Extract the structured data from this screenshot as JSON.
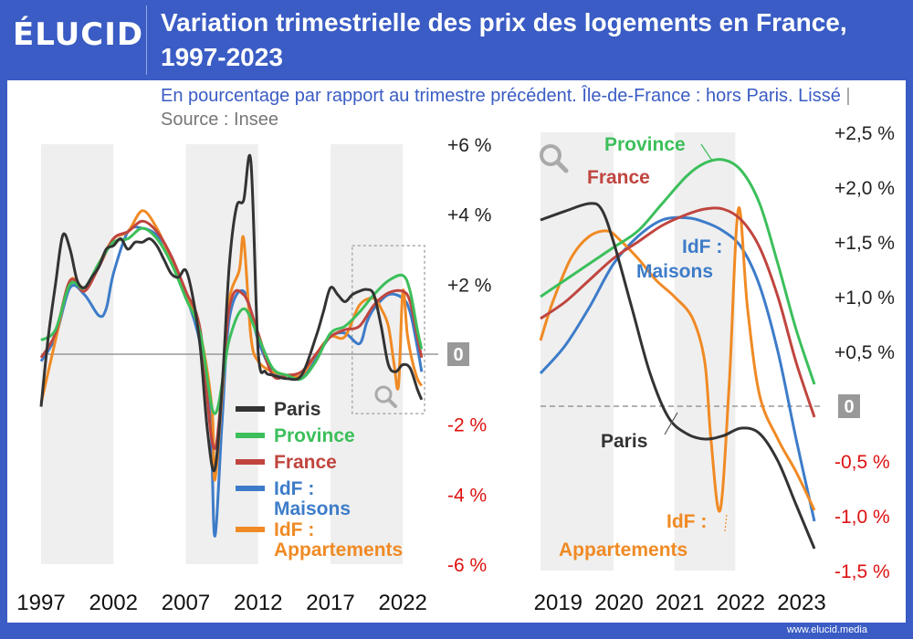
{
  "brand": "ÉLUCID",
  "title": "Variation trimestrielle des prix des logements en France, 1997-2023",
  "subtitle": "En pourcentage par rapport au trimestre précédent. Île-de-France : hors Paris. Lissé",
  "source": "Source : Insee",
  "footer": "www.elucid.media",
  "colors": {
    "Paris": "#333333",
    "Province": "#3cbf5b",
    "France": "#c0453f",
    "IdF : Maisons": "#3d7cc9",
    "IdF : Appartements": "#f08a24",
    "accent": "#3a5cc4",
    "negative": "#dd1111",
    "zero_badge": "#999999"
  },
  "chart_data": [
    {
      "type": "line",
      "x_ticks": [
        "1997",
        "2002",
        "2007",
        "2012",
        "2017",
        "2022"
      ],
      "y_tick_labels": [
        "+6 %",
        "+4 %",
        "+2 %",
        "0",
        "-2 %",
        "-4 %",
        "-6 %"
      ],
      "ylim": [
        -6,
        6
      ],
      "xlim": [
        1997,
        2023.5
      ],
      "legend": [
        "Paris",
        "Province",
        "France",
        "IdF : Maisons",
        "IdF : Appartements"
      ],
      "legend_placement": "bottom-right",
      "zoom_box": {
        "x_range": [
          2018.5,
          2023.5
        ],
        "y_range": [
          -1.7,
          3.1
        ]
      },
      "series": [
        {
          "name": "Paris",
          "x": [
            1997,
            1997.5,
            1998,
            1998.5,
            1999,
            1999.5,
            2000,
            2000.5,
            2001,
            2001.5,
            2002,
            2002.5,
            2003,
            2003.5,
            2004,
            2004.5,
            2005,
            2005.5,
            2006,
            2006.5,
            2007,
            2007.5,
            2008,
            2008.5,
            2009,
            2009.5,
            2010,
            2010.5,
            2011,
            2011.5,
            2012,
            2012.5,
            2013,
            2014,
            2015,
            2016,
            2016.5,
            2017,
            2017.5,
            2018,
            2018.5,
            2019,
            2019.5,
            2020,
            2020.5,
            2021,
            2021.5,
            2022,
            2022.5,
            2023,
            2023.3
          ],
          "y": [
            -1.5,
            0.5,
            2.0,
            3.4,
            3.0,
            2.1,
            1.9,
            2.2,
            2.5,
            3.0,
            3.1,
            3.3,
            3.0,
            3.2,
            3.2,
            3.3,
            3.1,
            2.7,
            2.3,
            2.2,
            2.4,
            1.6,
            0.2,
            -2.2,
            -3.3,
            -1.0,
            2.5,
            4.2,
            4.4,
            5.5,
            0.1,
            -0.5,
            -0.6,
            -0.7,
            -0.6,
            0.5,
            1.2,
            1.9,
            1.7,
            1.5,
            1.7,
            1.8,
            1.85,
            1.7,
            0.8,
            -0.3,
            -0.5,
            -0.3,
            -0.4,
            -1.0,
            -1.3
          ]
        },
        {
          "name": "Province",
          "x": [
            1997,
            1998,
            1999,
            2000,
            2001,
            2002,
            2003,
            2004,
            2005,
            2006,
            2007,
            2008,
            2009,
            2010,
            2011,
            2012,
            2013,
            2014,
            2015,
            2016,
            2017,
            2018,
            2019,
            2020,
            2021,
            2022,
            2022.5,
            2023,
            2023.3
          ],
          "y": [
            0.4,
            0.7,
            2.0,
            1.9,
            2.6,
            3.2,
            3.3,
            3.6,
            3.3,
            2.6,
            1.6,
            0.6,
            -1.7,
            0.4,
            1.3,
            0.5,
            -0.4,
            -0.6,
            -0.7,
            -0.2,
            0.6,
            0.8,
            1.2,
            1.7,
            2.1,
            2.25,
            1.8,
            0.7,
            0.15
          ]
        },
        {
          "name": "France",
          "x": [
            1997,
            1998,
            1999,
            2000,
            2001,
            2002,
            2003,
            2004,
            2005,
            2006,
            2007,
            2008,
            2009,
            2010,
            2011,
            2012,
            2013,
            2014,
            2015,
            2016,
            2017,
            2018,
            2019,
            2020,
            2021,
            2022,
            2022.5,
            2023,
            2023.3
          ],
          "y": [
            -0.1,
            0.6,
            2.1,
            1.8,
            2.5,
            3.3,
            3.5,
            3.8,
            3.5,
            2.8,
            1.8,
            0.7,
            -2.7,
            1.3,
            1.7,
            0.6,
            -0.6,
            -0.6,
            -0.5,
            0.0,
            0.5,
            0.7,
            0.8,
            1.4,
            1.75,
            1.8,
            1.5,
            0.5,
            -0.1
          ]
        },
        {
          "name": "IdF : Maisons",
          "x": [
            1997,
            1998,
            1999,
            2000,
            2001,
            2001.5,
            2002,
            2003,
            2004,
            2005,
            2006,
            2007,
            2008,
            2008.7,
            2009,
            2009.5,
            2010,
            2011,
            2012,
            2013,
            2014,
            2015,
            2016,
            2017,
            2018,
            2019,
            2019.5,
            2020,
            2021,
            2022,
            2022.5,
            2023,
            2023.3
          ],
          "y": [
            -0.2,
            0.5,
            1.9,
            1.7,
            1.1,
            1.3,
            2.3,
            3.5,
            3.6,
            3.4,
            2.8,
            1.7,
            0.3,
            -1.8,
            -5.2,
            -2.0,
            1.0,
            1.8,
            0.4,
            -0.5,
            -0.6,
            -0.7,
            -0.1,
            0.5,
            0.6,
            0.3,
            0.9,
            1.3,
            1.7,
            1.6,
            1.2,
            0.2,
            -0.5
          ]
        },
        {
          "name": "IdF : Appartements",
          "x": [
            1997,
            1998,
            1999,
            2000,
            2001,
            2002,
            2003,
            2004,
            2005,
            2006,
            2007,
            2008,
            2008.8,
            2009,
            2009.5,
            2010,
            2010.7,
            2011,
            2011.5,
            2012,
            2013,
            2014,
            2015,
            2016,
            2017,
            2018,
            2019,
            2020,
            2020.5,
            2021,
            2021.4,
            2021.7,
            2022,
            2022.3,
            2022.6,
            2023,
            2023.3
          ],
          "y": [
            -1.4,
            0.4,
            2.1,
            1.9,
            2.6,
            3.3,
            3.5,
            4.1,
            3.6,
            2.7,
            1.8,
            0.6,
            -1.5,
            -3.6,
            -1.2,
            1.5,
            2.4,
            3.3,
            0.5,
            -0.2,
            -0.5,
            -0.6,
            -0.6,
            0.0,
            0.5,
            0.5,
            1.4,
            1.6,
            1.3,
            0.8,
            -0.3,
            -0.9,
            1.8,
            0.6,
            -0.1,
            -0.7,
            -0.9
          ]
        }
      ]
    },
    {
      "type": "line",
      "x_ticks": [
        "2019",
        "2020",
        "2021",
        "2022",
        "2023"
      ],
      "y_tick_labels": [
        "+2,5 %",
        "+2,0 %",
        "+1,5 %",
        "+1,0 %",
        "+0,5 %",
        "0",
        "-0,5 %",
        "-1,0 %",
        "-1,5 %"
      ],
      "ylim": [
        -1.5,
        2.5
      ],
      "xlim": [
        2018.8,
        2023.3
      ],
      "annotations": [
        "Province",
        "France",
        "IdF : Maisons",
        "Paris",
        "IdF : Appartements"
      ],
      "series": [
        {
          "name": "Paris",
          "x": [
            2018.8,
            2019.2,
            2019.6,
            2019.8,
            2020.0,
            2020.3,
            2020.6,
            2020.9,
            2021.2,
            2021.5,
            2021.8,
            2022.1,
            2022.4,
            2022.7,
            2023.0,
            2023.3
          ],
          "y": [
            1.7,
            1.78,
            1.85,
            1.8,
            1.5,
            0.9,
            0.3,
            -0.1,
            -0.25,
            -0.3,
            -0.27,
            -0.2,
            -0.25,
            -0.5,
            -0.9,
            -1.3
          ]
        },
        {
          "name": "Province",
          "x": [
            2018.8,
            2019.2,
            2019.6,
            2020.0,
            2020.4,
            2020.8,
            2021.2,
            2021.5,
            2021.8,
            2022.1,
            2022.4,
            2022.7,
            2023.0,
            2023.3
          ],
          "y": [
            1.0,
            1.15,
            1.3,
            1.45,
            1.6,
            1.85,
            2.1,
            2.22,
            2.25,
            2.15,
            1.85,
            1.3,
            0.7,
            0.2
          ]
        },
        {
          "name": "France",
          "x": [
            2018.8,
            2019.2,
            2019.6,
            2020.0,
            2020.4,
            2020.8,
            2021.2,
            2021.5,
            2021.8,
            2022.1,
            2022.4,
            2022.7,
            2023.0,
            2023.3
          ],
          "y": [
            0.8,
            0.95,
            1.15,
            1.35,
            1.5,
            1.65,
            1.75,
            1.8,
            1.8,
            1.7,
            1.45,
            1.0,
            0.4,
            -0.1
          ]
        },
        {
          "name": "IdF : Maisons",
          "x": [
            2018.8,
            2019.2,
            2019.6,
            2020.0,
            2020.4,
            2020.8,
            2021.2,
            2021.5,
            2021.8,
            2022.1,
            2022.4,
            2022.7,
            2023.0,
            2023.3
          ],
          "y": [
            0.3,
            0.55,
            0.9,
            1.3,
            1.55,
            1.7,
            1.72,
            1.68,
            1.6,
            1.45,
            1.1,
            0.5,
            -0.3,
            -1.05
          ]
        },
        {
          "name": "IdF : Appartements",
          "x": [
            2018.8,
            2019.0,
            2019.3,
            2019.6,
            2019.9,
            2020.1,
            2020.4,
            2020.7,
            2021.0,
            2021.3,
            2021.5,
            2021.6,
            2021.75,
            2021.9,
            2022.05,
            2022.2,
            2022.4,
            2022.7,
            2023.0,
            2023.3
          ],
          "y": [
            0.6,
            0.95,
            1.35,
            1.55,
            1.6,
            1.52,
            1.35,
            1.15,
            1.0,
            0.8,
            0.4,
            -0.3,
            -0.95,
            0.2,
            1.8,
            0.9,
            0.1,
            -0.3,
            -0.6,
            -0.95
          ]
        }
      ]
    }
  ]
}
